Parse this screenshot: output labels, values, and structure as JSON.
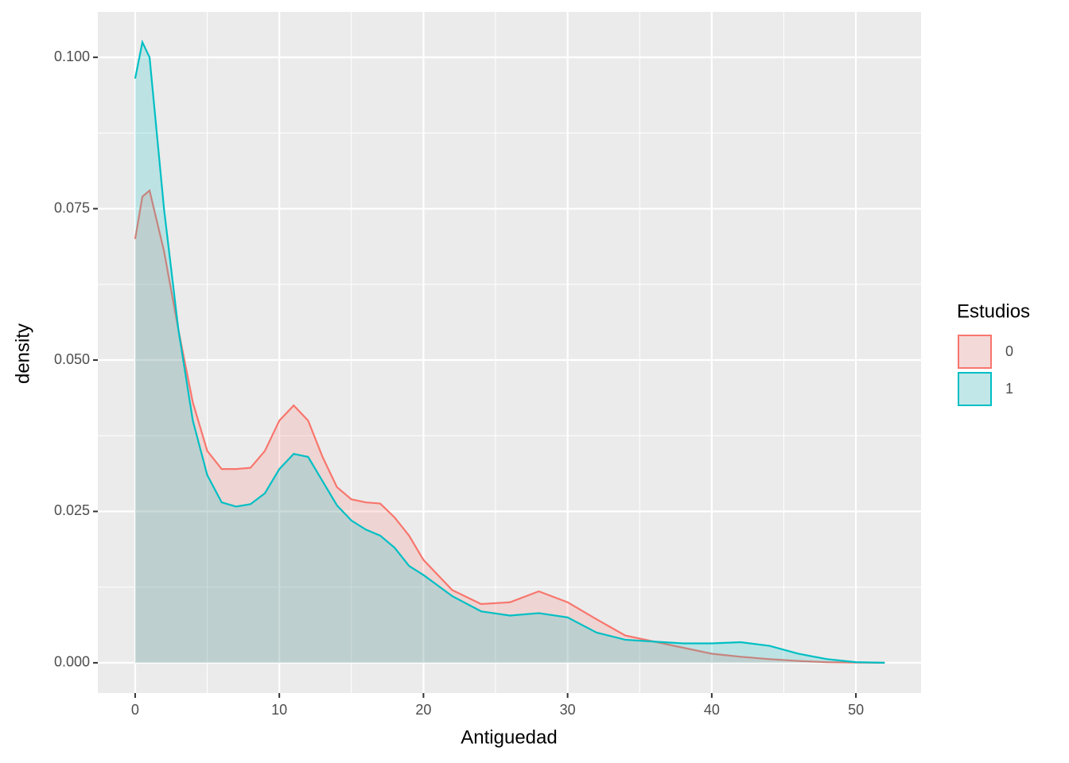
{
  "chart_data": {
    "type": "density",
    "x_label": "Antiguedad",
    "y_label": "density",
    "legend_title": "Estudios",
    "legend_position": "right",
    "x": [
      0,
      0.5,
      1,
      2,
      3,
      4,
      5,
      6,
      7,
      8,
      9,
      10,
      11,
      12,
      13,
      14,
      15,
      16,
      17,
      18,
      19,
      20,
      22,
      24,
      26,
      28,
      30,
      32,
      34,
      36,
      38,
      40,
      42,
      44,
      46,
      48,
      50,
      52
    ],
    "series": [
      {
        "name": "0",
        "color": "#F8766D",
        "values": [
          0.07,
          0.077,
          0.078,
          0.068,
          0.055,
          0.043,
          0.035,
          0.032,
          0.032,
          0.0322,
          0.035,
          0.04,
          0.0425,
          0.04,
          0.034,
          0.029,
          0.027,
          0.0265,
          0.0263,
          0.024,
          0.021,
          0.017,
          0.012,
          0.0097,
          0.01,
          0.0118,
          0.01,
          0.0072,
          0.0045,
          0.0035,
          0.0025,
          0.0015,
          0.001,
          0.0006,
          0.0003,
          0.0001,
          3e-05,
          0
        ]
      },
      {
        "name": "1",
        "color": "#00BFC4",
        "values": [
          0.0965,
          0.1025,
          0.1,
          0.075,
          0.055,
          0.04,
          0.031,
          0.0265,
          0.0258,
          0.0262,
          0.028,
          0.032,
          0.0345,
          0.034,
          0.03,
          0.026,
          0.0235,
          0.022,
          0.021,
          0.019,
          0.016,
          0.0145,
          0.011,
          0.0085,
          0.0078,
          0.0082,
          0.0075,
          0.005,
          0.0038,
          0.0035,
          0.0032,
          0.0032,
          0.0034,
          0.0028,
          0.0015,
          0.0006,
          0.0001,
          0
        ]
      }
    ],
    "fill_opacity": 0.2,
    "xlim": [
      -2.59,
      54.52
    ],
    "ylim": [
      -0.005,
      0.1075
    ],
    "xticks": [
      0,
      10,
      20,
      30,
      40,
      50
    ],
    "yticks": [
      {
        "value": 0,
        "label": "0.000"
      },
      {
        "value": 0.025,
        "label": "0.025"
      },
      {
        "value": 0.05,
        "label": "0.050"
      },
      {
        "value": 0.075,
        "label": "0.075"
      },
      {
        "value": 0.1,
        "label": "0.100"
      }
    ],
    "grid": true
  }
}
